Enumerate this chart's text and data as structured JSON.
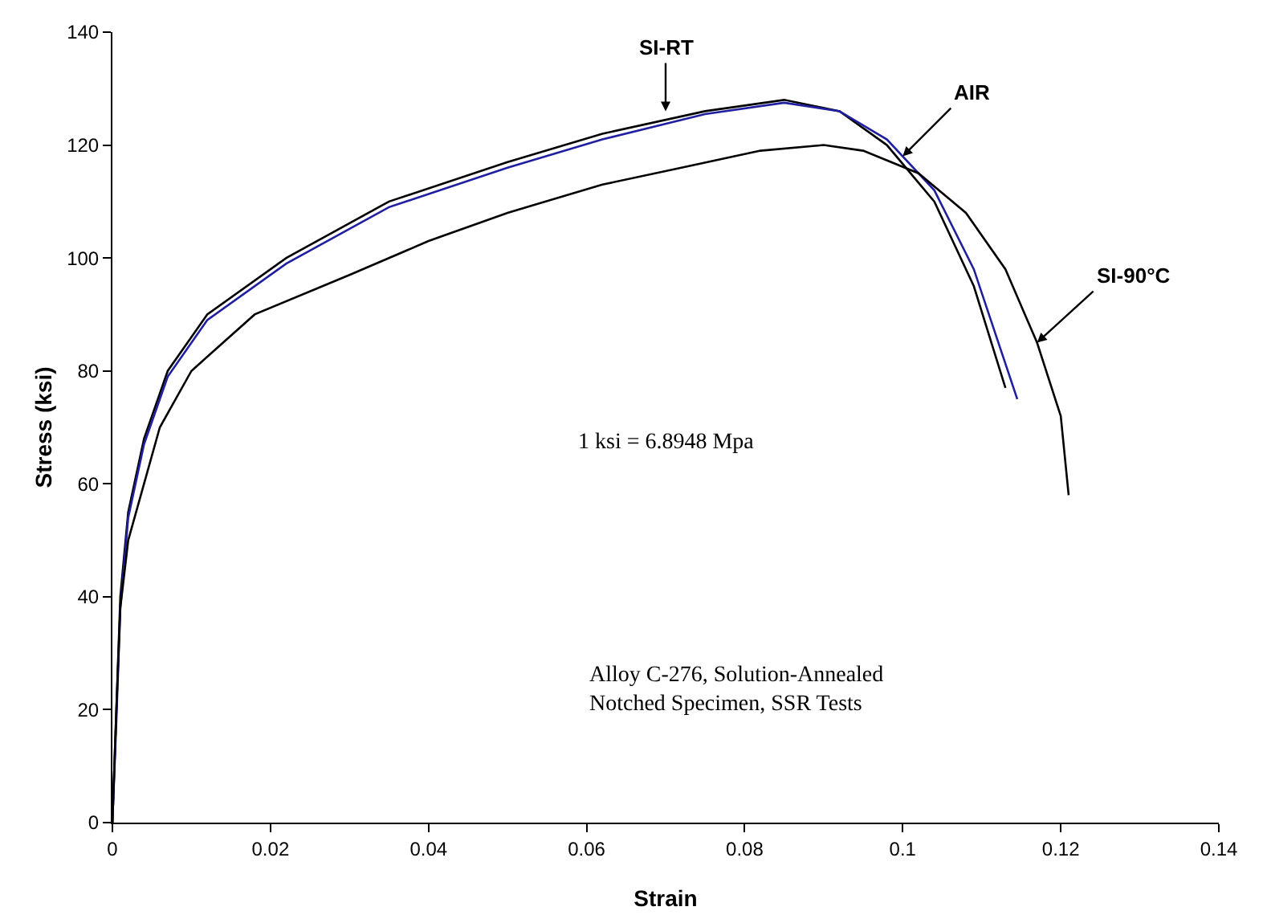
{
  "chart_data": {
    "type": "line",
    "xlabel": "Strain",
    "ylabel": "Stress (ksi)",
    "xlim": [
      0,
      0.14
    ],
    "xticks": [
      0,
      0.02,
      0.04,
      0.06,
      0.08,
      0.1,
      0.12,
      0.14
    ],
    "ylim": [
      0,
      140
    ],
    "yticks": [
      0,
      20,
      40,
      60,
      80,
      100,
      120,
      140
    ],
    "grid": false,
    "marker": "none",
    "line_style": "solid",
    "series": [
      {
        "color": "#000000",
        "x": [
          0,
          0.0005,
          0.001,
          0.002,
          0.004,
          0.007,
          0.012,
          0.022,
          0.035,
          0.05,
          0.062,
          0.075,
          0.085,
          0.092,
          0.098,
          0.104,
          0.109,
          0.113
        ],
        "values": [
          0,
          20,
          40,
          55,
          68,
          80,
          90,
          100,
          110,
          117,
          122,
          126,
          128,
          126,
          120,
          110,
          95,
          77
        ]
      },
      {
        "color": "#1f1fa0",
        "x": [
          0,
          0.0005,
          0.001,
          0.002,
          0.004,
          0.007,
          0.012,
          0.022,
          0.035,
          0.05,
          0.062,
          0.075,
          0.085,
          0.092,
          0.098,
          0.104,
          0.109,
          0.1145
        ],
        "values": [
          0,
          18,
          38,
          54,
          67,
          79,
          89,
          99,
          109,
          116,
          121,
          125.5,
          127.5,
          126,
          121,
          112,
          98,
          75
        ]
      },
      {
        "color": "#000000",
        "x": [
          0,
          0.0005,
          0.001,
          0.002,
          0.006,
          0.01,
          0.018,
          0.03,
          0.04,
          0.05,
          0.062,
          0.072,
          0.082,
          0.09,
          0.095,
          0.102,
          0.108,
          0.113,
          0.117,
          0.12,
          0.121
        ],
        "values": [
          0,
          20,
          38,
          50,
          70,
          80,
          90,
          97,
          103,
          108,
          113,
          116,
          119,
          120,
          119,
          115,
          108,
          98,
          85,
          72,
          58
        ]
      }
    ],
    "annotations": [
      {
        "text": "SI-RT",
        "x": 0.07,
        "y": 126
      },
      {
        "text": "AIR",
        "x": 0.1,
        "y": 118
      },
      {
        "text": "SI-90°C",
        "x": 0.117,
        "y": 85
      },
      "1 ksi = 6.8948 Mpa",
      "Alloy C-276, Solution-Annealed\nNotched Specimen, SSR Tests"
    ]
  }
}
